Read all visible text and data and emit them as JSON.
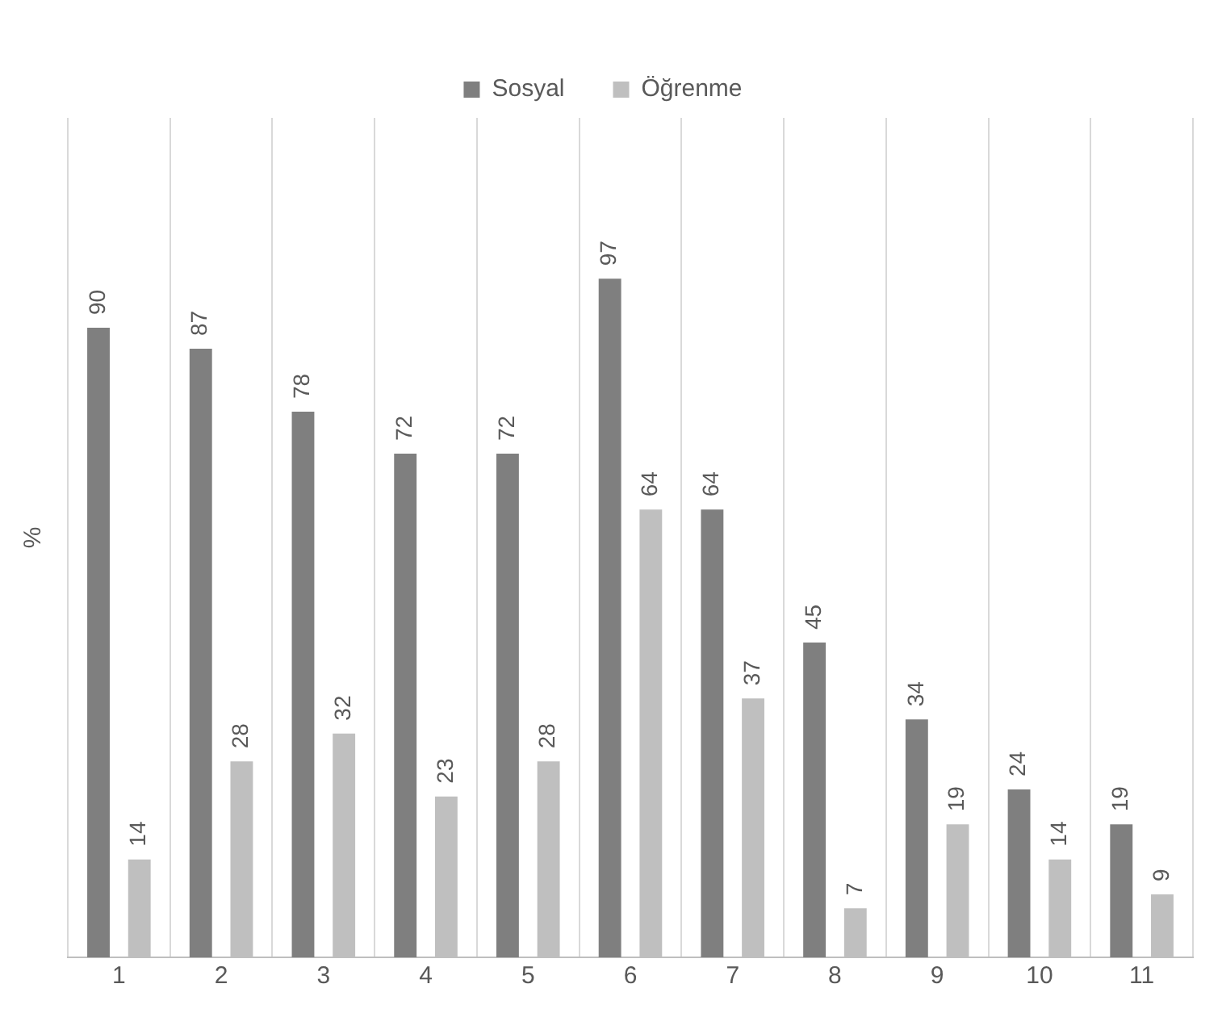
{
  "chart_data": {
    "type": "bar",
    "ylabel": "%",
    "categories": [
      "1",
      "2",
      "3",
      "4",
      "5",
      "6",
      "7",
      "8",
      "9",
      "10",
      "11"
    ],
    "series": [
      {
        "name": "Sosyal",
        "color": "#7f7f7f",
        "values": [
          90,
          87,
          78,
          72,
          72,
          97,
          64,
          45,
          34,
          24,
          19
        ]
      },
      {
        "name": "Öğrenme",
        "color": "#bfbfbf",
        "values": [
          14,
          28,
          32,
          23,
          28,
          64,
          37,
          7,
          19,
          14,
          9
        ]
      }
    ],
    "data_labels": true,
    "grid": "x",
    "legend": "top"
  }
}
